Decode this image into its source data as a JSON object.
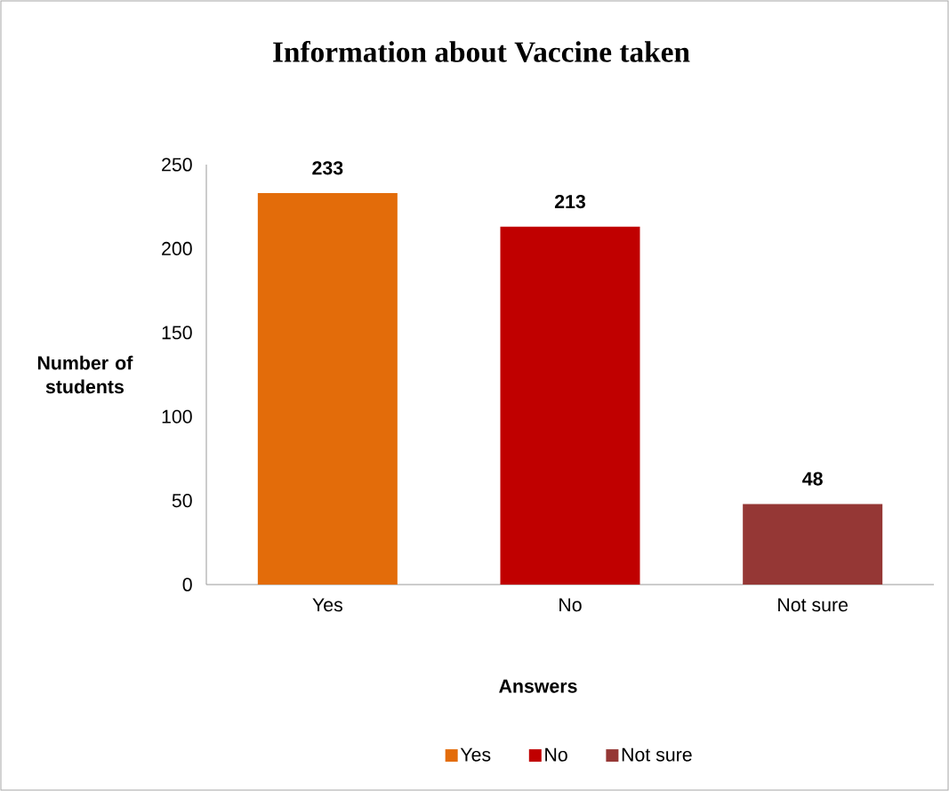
{
  "chart_data": {
    "type": "bar",
    "title": "Information about Vaccine taken",
    "xlabel": "Answers",
    "ylabel": "Number of students",
    "categories": [
      "Yes",
      "No",
      "Not sure"
    ],
    "series": [
      {
        "name": "Yes",
        "color": "#e36c0a",
        "values": [
          233,
          null,
          null
        ]
      },
      {
        "name": "No",
        "color": "#c00000",
        "values": [
          null,
          213,
          null
        ]
      },
      {
        "name": "Not sure",
        "color": "#953735",
        "values": [
          null,
          null,
          48
        ]
      }
    ],
    "ylim": [
      0,
      250
    ],
    "yticks": [
      0,
      50,
      100,
      150,
      200,
      250
    ],
    "data_labels": true,
    "legend": "bottom",
    "grid": false
  }
}
